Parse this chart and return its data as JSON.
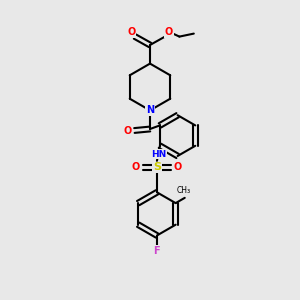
{
  "bg_color": "#e8e8e8",
  "bond_color": "#000000",
  "atom_colors": {
    "O": "#ff0000",
    "N": "#0000ff",
    "S": "#cccc00",
    "F": "#cc44cc",
    "H": "#44aaaa",
    "C": "#000000"
  },
  "figsize": [
    3.0,
    3.0
  ],
  "dpi": 100
}
